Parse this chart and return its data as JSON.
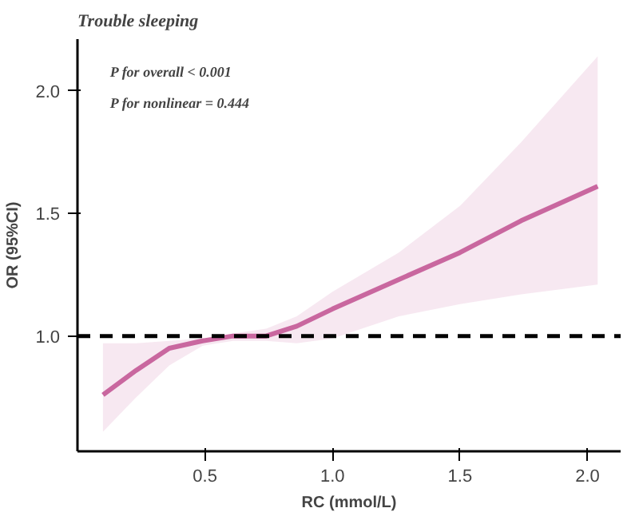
{
  "chart_data": {
    "type": "line",
    "title": "Trouble sleeping",
    "xlabel": "RC (mmol/L)",
    "ylabel": "OR (95%CI)",
    "annotations": [
      "P for overall < 0.001",
      "P for nonlinear = 0.444"
    ],
    "x": [
      0.1,
      0.23,
      0.36,
      0.49,
      0.61,
      0.74,
      0.86,
      1.0,
      1.26,
      1.5,
      1.74,
      2.04
    ],
    "series": [
      {
        "color": "#c9679f",
        "values": [
          0.76,
          0.86,
          0.95,
          0.98,
          1.0,
          1.0,
          1.04,
          1.11,
          1.23,
          1.34,
          1.47,
          1.61
        ],
        "lower": [
          0.61,
          0.75,
          0.88,
          0.96,
          0.98,
          0.98,
          0.97,
          0.99,
          1.08,
          1.13,
          1.17,
          1.21
        ],
        "upper": [
          0.97,
          0.97,
          0.98,
          0.99,
          1.01,
          1.03,
          1.08,
          1.18,
          1.34,
          1.53,
          1.79,
          2.14
        ]
      }
    ],
    "xlim": [
      0.0,
      2.13
    ],
    "ylim": [
      0.53,
      2.21
    ],
    "xticks": [
      0.5,
      {
        "value": 1,
        "label": "1.0"
      },
      1.5,
      {
        "value": 2,
        "label": "2.0"
      }
    ],
    "yticks": [
      {
        "value": 1,
        "label": "1.0"
      },
      1.5,
      {
        "value": 2,
        "label": "2.0"
      }
    ],
    "ref_lines": [
      {
        "axis": "y",
        "value": 1.0,
        "color": "#000000",
        "line_style": "dashed"
      }
    ],
    "grid": false
  }
}
